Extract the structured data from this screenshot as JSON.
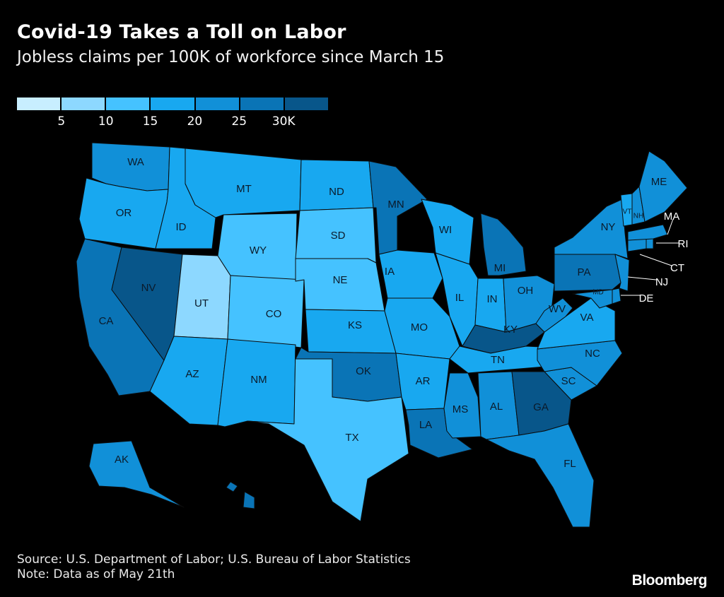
{
  "title": "Covid-19 Takes a Toll on Labor",
  "subtitle": "Jobless claims per 100K of workforce since March 15",
  "colors": {
    "background": "#000000",
    "border": "#0b0b0b",
    "scale": [
      "#c8eeff",
      "#8dd8ff",
      "#45c2ff",
      "#18a8f0",
      "#1190d8",
      "#0a74b6",
      "#08568a"
    ]
  },
  "legend": {
    "ticks": [
      "5",
      "10",
      "15",
      "20",
      "25",
      "30K"
    ]
  },
  "map_data": {
    "type": "choropleth",
    "bins": [
      0,
      5000,
      10000,
      15000,
      20000,
      25000,
      30000
    ],
    "states": [
      {
        "code": "WA",
        "bin": 4
      },
      {
        "code": "OR",
        "bin": 3
      },
      {
        "code": "CA",
        "bin": 5
      },
      {
        "code": "ID",
        "bin": 3
      },
      {
        "code": "NV",
        "bin": 6
      },
      {
        "code": "UT",
        "bin": 1
      },
      {
        "code": "AZ",
        "bin": 3
      },
      {
        "code": "MT",
        "bin": 3
      },
      {
        "code": "WY",
        "bin": 2
      },
      {
        "code": "CO",
        "bin": 2
      },
      {
        "code": "NM",
        "bin": 3
      },
      {
        "code": "ND",
        "bin": 3
      },
      {
        "code": "SD",
        "bin": 2
      },
      {
        "code": "NE",
        "bin": 2
      },
      {
        "code": "KS",
        "bin": 3
      },
      {
        "code": "OK",
        "bin": 5
      },
      {
        "code": "TX",
        "bin": 2
      },
      {
        "code": "MN",
        "bin": 5
      },
      {
        "code": "IA",
        "bin": 3
      },
      {
        "code": "MO",
        "bin": 3
      },
      {
        "code": "AR",
        "bin": 3
      },
      {
        "code": "LA",
        "bin": 5
      },
      {
        "code": "WI",
        "bin": 3
      },
      {
        "code": "IL",
        "bin": 3
      },
      {
        "code": "MI",
        "bin": 5
      },
      {
        "code": "IN",
        "bin": 3
      },
      {
        "code": "OH",
        "bin": 4
      },
      {
        "code": "KY",
        "bin": 6
      },
      {
        "code": "TN",
        "bin": 3
      },
      {
        "code": "MS",
        "bin": 4
      },
      {
        "code": "AL",
        "bin": 4
      },
      {
        "code": "GA",
        "bin": 6
      },
      {
        "code": "FL",
        "bin": 4
      },
      {
        "code": "SC",
        "bin": 4
      },
      {
        "code": "NC",
        "bin": 4
      },
      {
        "code": "VA",
        "bin": 3
      },
      {
        "code": "WV",
        "bin": 4
      },
      {
        "code": "PA",
        "bin": 5
      },
      {
        "code": "NY",
        "bin": 4
      },
      {
        "code": "MD",
        "bin": 4
      },
      {
        "code": "DE",
        "bin": 4
      },
      {
        "code": "NJ",
        "bin": 4
      },
      {
        "code": "CT",
        "bin": 4
      },
      {
        "code": "RI",
        "bin": 4
      },
      {
        "code": "MA",
        "bin": 4
      },
      {
        "code": "VT",
        "bin": 3
      },
      {
        "code": "NH",
        "bin": 4
      },
      {
        "code": "ME",
        "bin": 4
      },
      {
        "code": "AK",
        "bin": 4
      },
      {
        "code": "HI",
        "bin": 5
      }
    ]
  },
  "footer": {
    "source": "Source: U.S. Department of Labor; U.S. Bureau of Labor Statistics",
    "note": "Note: Data as of May 21th"
  },
  "brand": "Bloomberg"
}
